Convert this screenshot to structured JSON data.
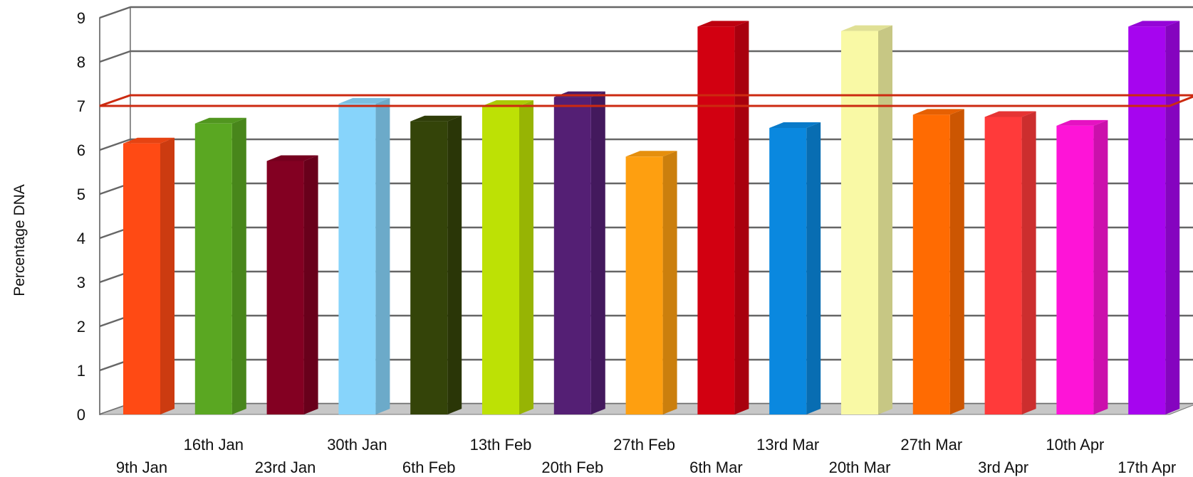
{
  "chart_data": {
    "type": "bar",
    "style": "3d",
    "ylabel": "Percentage DNA",
    "ylim": [
      0,
      9
    ],
    "yticks": [
      "0",
      "1",
      "2",
      "3",
      "4",
      "5",
      "6",
      "7",
      "8",
      "9"
    ],
    "grid": true,
    "reference_line": {
      "value": 7,
      "color": "#cc2a10"
    },
    "categories": [
      "9th Jan",
      "16th Jan",
      "23rd Jan",
      "30th Jan",
      "6th Feb",
      "13th Feb",
      "20th Feb",
      "27th Feb",
      "6th Mar",
      "13rd Mar",
      "20th Mar",
      "27th Mar",
      "3rd Apr",
      "10th Apr",
      "17th Apr"
    ],
    "values": [
      6.15,
      6.6,
      5.75,
      7.05,
      6.65,
      7.0,
      7.2,
      5.85,
      8.8,
      6.5,
      8.7,
      6.8,
      6.75,
      6.55,
      8.8
    ],
    "colors": [
      "#ff4a14",
      "#5aa722",
      "#830022",
      "#87d4fb",
      "#344409",
      "#bde105",
      "#541f74",
      "#fe9f10",
      "#d20011",
      "#0a88df",
      "#f9f9a5",
      "#ff6b02",
      "#ff3a3a",
      "#fe14d7",
      "#a605ef"
    ]
  }
}
